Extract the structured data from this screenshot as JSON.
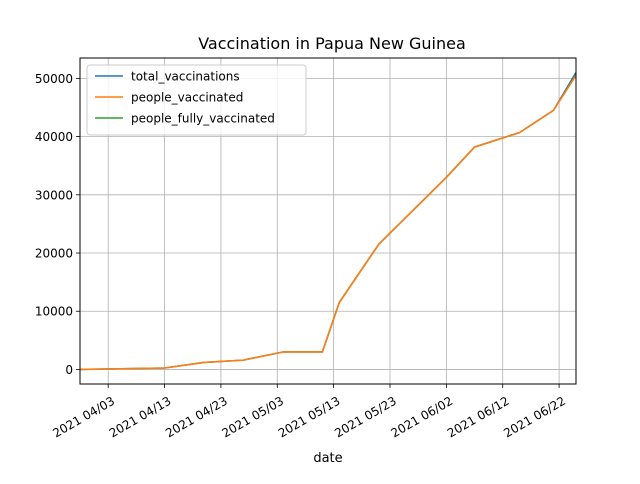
{
  "chart_data": {
    "type": "line",
    "title": "Vaccination in Papua New Guinea",
    "xlabel": "date",
    "ylabel": "",
    "grid": true,
    "legend_position": "top-left",
    "xlim": [
      "2021-03-29",
      "2021-06-25"
    ],
    "ylim": [
      -2500,
      53500
    ],
    "x_ticks": [
      {
        "date": "2021-04-03",
        "label": "2021 04/03"
      },
      {
        "date": "2021-04-13",
        "label": "2021 04/13"
      },
      {
        "date": "2021-04-23",
        "label": "2021 04/23"
      },
      {
        "date": "2021-05-03",
        "label": "2021 05/03"
      },
      {
        "date": "2021-05-13",
        "label": "2021 05/13"
      },
      {
        "date": "2021-05-23",
        "label": "2021 05/23"
      },
      {
        "date": "2021-06-02",
        "label": "2021 06/02"
      },
      {
        "date": "2021-06-12",
        "label": "2021 06/12"
      },
      {
        "date": "2021-06-22",
        "label": "2021 06/22"
      }
    ],
    "y_ticks": [
      {
        "value": 0,
        "label": "0"
      },
      {
        "value": 10000,
        "label": "10000"
      },
      {
        "value": 20000,
        "label": "20000"
      },
      {
        "value": 30000,
        "label": "30000"
      },
      {
        "value": 40000,
        "label": "40000"
      },
      {
        "value": 50000,
        "label": "50000"
      }
    ],
    "series": [
      {
        "name": "total_vaccinations",
        "color": "#1f77b4",
        "points": [
          {
            "x": "2021-03-29",
            "y": 0
          },
          {
            "x": "2021-04-13",
            "y": 250
          },
          {
            "x": "2021-04-20",
            "y": 1200
          },
          {
            "x": "2021-04-27",
            "y": 1600
          },
          {
            "x": "2021-05-04",
            "y": 3000
          },
          {
            "x": "2021-05-11",
            "y": 3000
          },
          {
            "x": "2021-05-14",
            "y": 11500
          },
          {
            "x": "2021-05-21",
            "y": 21500
          },
          {
            "x": "2021-06-02",
            "y": 33000
          },
          {
            "x": "2021-06-07",
            "y": 38200
          },
          {
            "x": "2021-06-15",
            "y": 40700
          },
          {
            "x": "2021-06-21",
            "y": 44500
          },
          {
            "x": "2021-06-25",
            "y": 51000
          }
        ]
      },
      {
        "name": "people_vaccinated",
        "color": "#ff7f0e",
        "points": [
          {
            "x": "2021-03-29",
            "y": 0
          },
          {
            "x": "2021-04-13",
            "y": 250
          },
          {
            "x": "2021-04-20",
            "y": 1200
          },
          {
            "x": "2021-04-27",
            "y": 1600
          },
          {
            "x": "2021-05-04",
            "y": 3000
          },
          {
            "x": "2021-05-11",
            "y": 3000
          },
          {
            "x": "2021-05-14",
            "y": 11500
          },
          {
            "x": "2021-05-21",
            "y": 21500
          },
          {
            "x": "2021-06-02",
            "y": 33000
          },
          {
            "x": "2021-06-07",
            "y": 38200
          },
          {
            "x": "2021-06-15",
            "y": 40700
          },
          {
            "x": "2021-06-21",
            "y": 44500
          },
          {
            "x": "2021-06-25",
            "y": 50500
          }
        ]
      },
      {
        "name": "people_fully_vaccinated",
        "color": "#2ca02c",
        "points": []
      }
    ]
  }
}
